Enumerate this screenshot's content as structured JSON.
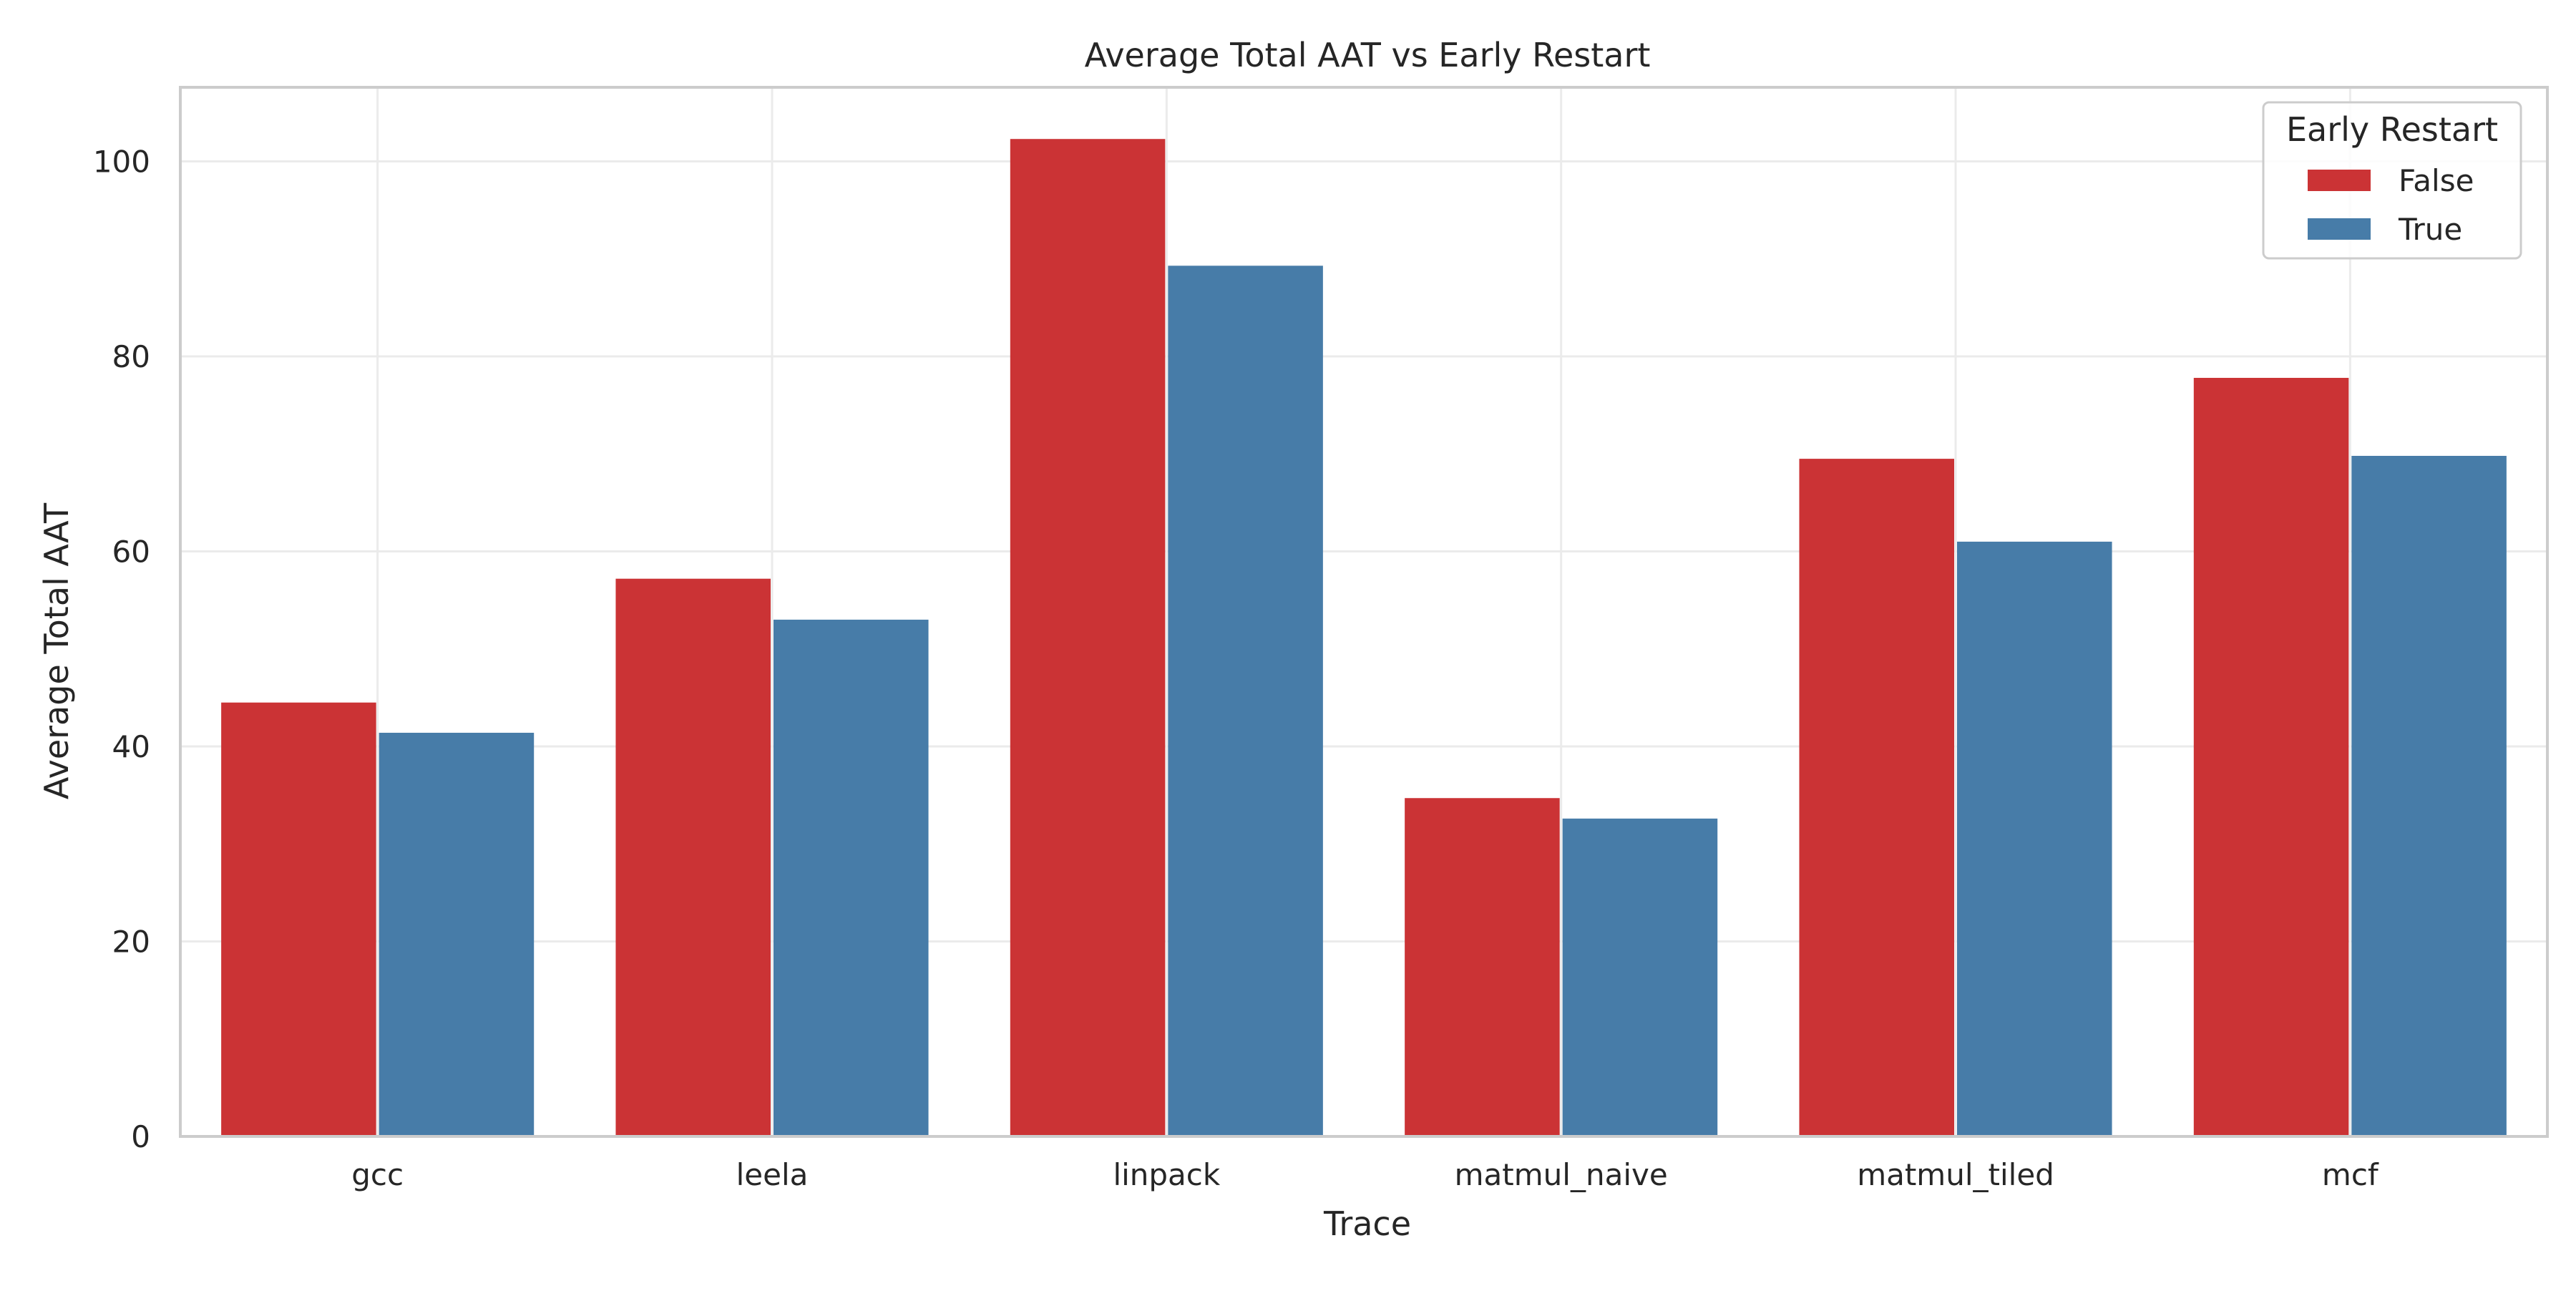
{
  "chart_data": {
    "type": "bar",
    "title": "Average Total AAT vs Early Restart",
    "xlabel": "Trace",
    "ylabel": "Average Total AAT",
    "categories": [
      "gcc",
      "leela",
      "linpack",
      "matmul_naive",
      "matmul_tiled",
      "mcf"
    ],
    "series": [
      {
        "name": "False",
        "color": "#cb3335",
        "values": [
          44.5,
          57.2,
          102.3,
          34.7,
          69.5,
          77.8
        ]
      },
      {
        "name": "True",
        "color": "#477ca8",
        "values": [
          41.4,
          53.0,
          89.3,
          32.6,
          61.0,
          69.8
        ]
      }
    ],
    "ylim": [
      0,
      107.6
    ],
    "yticks": [
      0,
      20,
      40,
      60,
      80,
      100
    ],
    "grid": true,
    "legend": {
      "title": "Early Restart",
      "placement": "top-right"
    }
  }
}
